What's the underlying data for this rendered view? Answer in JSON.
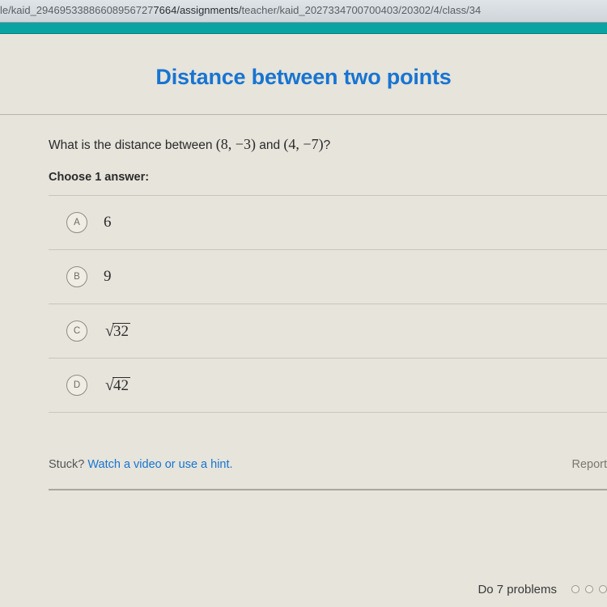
{
  "url": {
    "left_dim": "le/kaid_29469533886608956727",
    "mid_dark": "7664/assignments/",
    "right_dim": "teacher/kaid_2027334700700403/20302/4/class/34"
  },
  "title": "Distance between two points",
  "question": {
    "prefix": "What is the distance between ",
    "p1": "(8, −3)",
    "mid": " and ",
    "p2": "(4, −7)",
    "suffix": "?"
  },
  "choose": "Choose 1 answer:",
  "options": [
    {
      "letter": "A",
      "type": "num",
      "value": "6"
    },
    {
      "letter": "B",
      "type": "num",
      "value": "9"
    },
    {
      "letter": "C",
      "type": "sqrt",
      "value": "32"
    },
    {
      "letter": "D",
      "type": "sqrt",
      "value": "42"
    }
  ],
  "stuck": {
    "prefix": "Stuck? ",
    "link": "Watch a video or use a hint."
  },
  "report": "Report",
  "footer": "Do 7 problems",
  "colors": {
    "title": "#1874d1",
    "teal": "#0aa3a3",
    "page_bg": "#e6e4db"
  }
}
